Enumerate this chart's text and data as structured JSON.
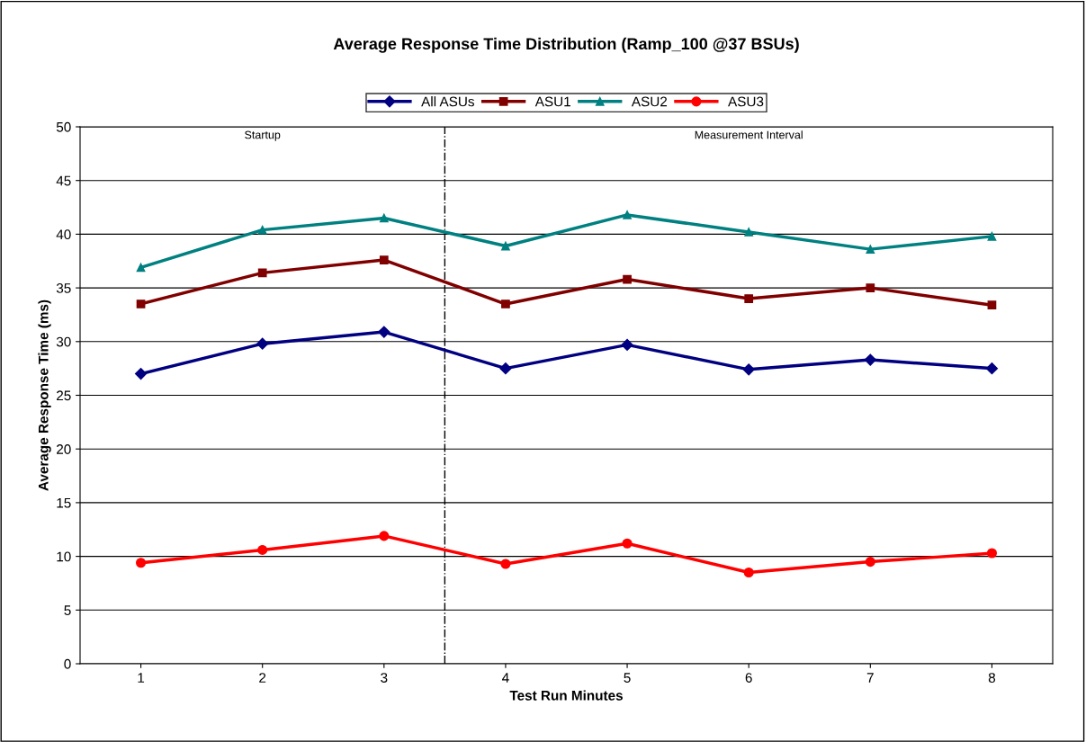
{
  "chart_data": {
    "type": "line",
    "title": "Average Response Time Distribution (Ramp_100 @37 BSUs)",
    "xlabel": "Test Run Minutes",
    "ylabel": "Average Response Time (ms)",
    "x": [
      1,
      2,
      3,
      4,
      5,
      6,
      7,
      8
    ],
    "xlim": [
      0.5,
      8.5
    ],
    "xticks": [
      1,
      2,
      3,
      4,
      5,
      6,
      7,
      8
    ],
    "ylim": [
      0,
      50
    ],
    "yticks": [
      0,
      5,
      10,
      15,
      20,
      25,
      30,
      35,
      40,
      45,
      50
    ],
    "series": [
      {
        "name": "All ASUs",
        "color": "#000080",
        "marker": "diamond",
        "values": [
          27.0,
          29.8,
          30.9,
          27.5,
          29.7,
          27.4,
          28.3,
          27.5
        ]
      },
      {
        "name": "ASU1",
        "color": "#800000",
        "marker": "square",
        "values": [
          33.5,
          36.4,
          37.6,
          33.5,
          35.8,
          34.0,
          35.0,
          33.4
        ]
      },
      {
        "name": "ASU2",
        "color": "#008080",
        "marker": "triangle",
        "values": [
          36.9,
          40.4,
          41.5,
          38.9,
          41.8,
          40.2,
          38.6,
          39.8
        ]
      },
      {
        "name": "ASU3",
        "color": "#ff0000",
        "marker": "circle",
        "values": [
          9.4,
          10.6,
          11.9,
          9.3,
          11.2,
          8.5,
          9.5,
          10.3
        ]
      }
    ],
    "ref_lines": [
      {
        "axis": "x",
        "value": 3.5,
        "color": "#000000",
        "line_style": "dashdot"
      }
    ],
    "annotations": [
      "Startup",
      "Measurement Interval"
    ],
    "grid": "y",
    "legend": "top",
    "line_style": "solid"
  }
}
